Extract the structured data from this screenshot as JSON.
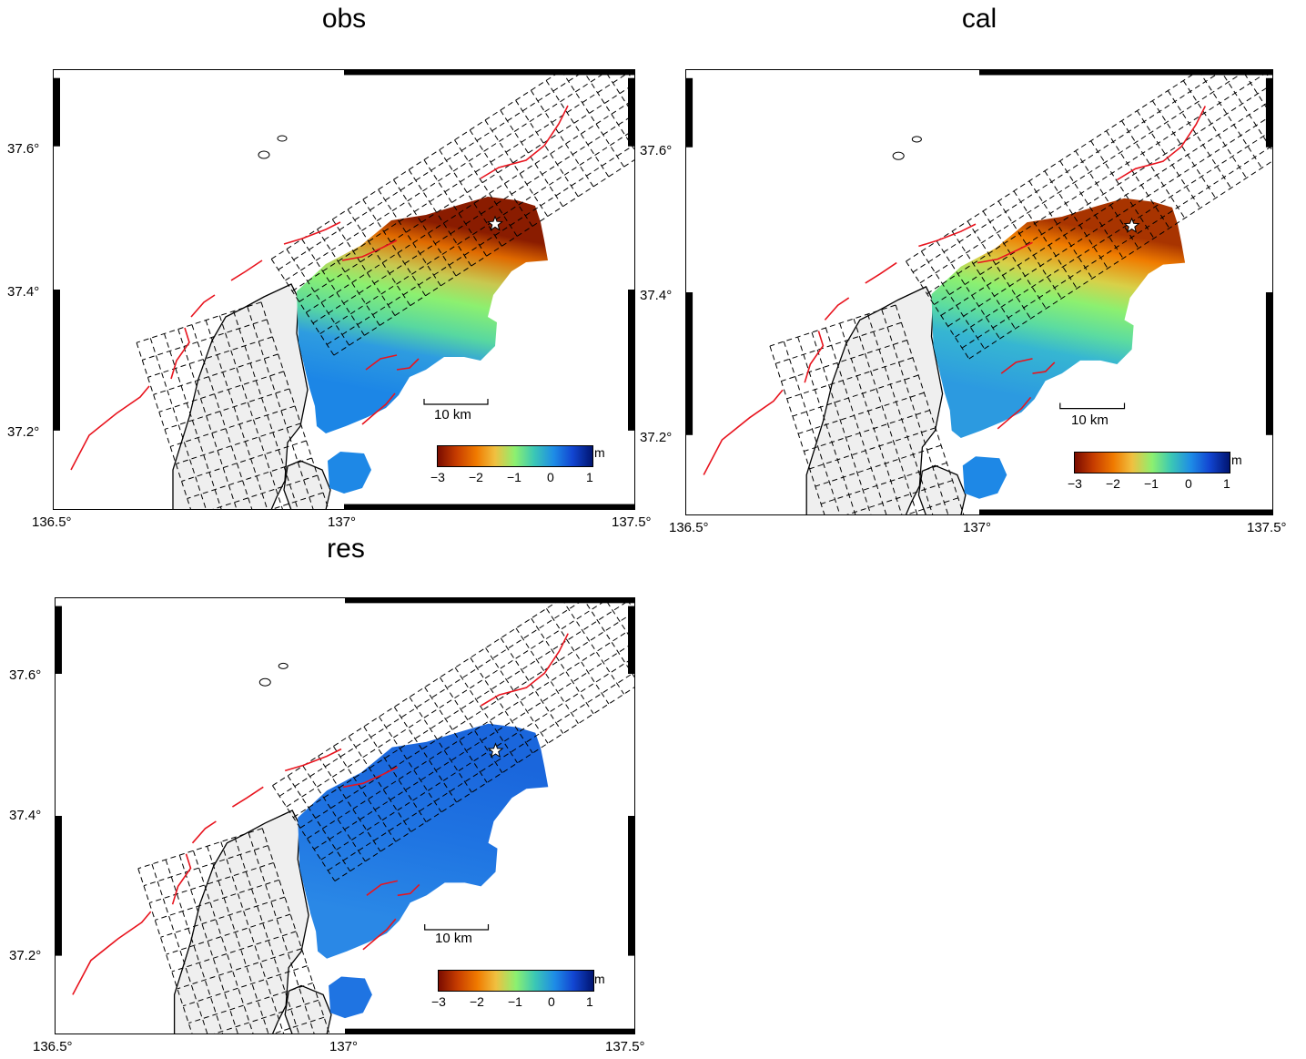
{
  "panels": [
    {
      "id": "obs",
      "title": "obs"
    },
    {
      "id": "cal",
      "title": "cal"
    },
    {
      "id": "res",
      "title": "res"
    }
  ],
  "map_axes": {
    "lat_ticks": [
      "37.6°",
      "37.4°",
      "37.2°"
    ],
    "lon_ticks": [
      "136.5°",
      "137°",
      "137.5°"
    ],
    "lon_range": [
      136.5,
      137.5
    ],
    "lat_range": [
      37.1,
      37.7
    ]
  },
  "scale_bar": {
    "label": "10 km"
  },
  "colorbar": {
    "ticks": [
      "−3",
      "−2",
      "−1",
      "0",
      "1"
    ],
    "unit": "m",
    "range": [
      -3,
      1
    ],
    "colors": [
      "#7a0c00",
      "#f07a00",
      "#8cf070",
      "#1e8ce6",
      "#001470"
    ]
  },
  "colors": {
    "fault": "#e8141e",
    "grid": "#000000",
    "land": "#efefef",
    "epicenter": "#ffffff"
  },
  "icons": {
    "epicenter": "star-icon"
  }
}
